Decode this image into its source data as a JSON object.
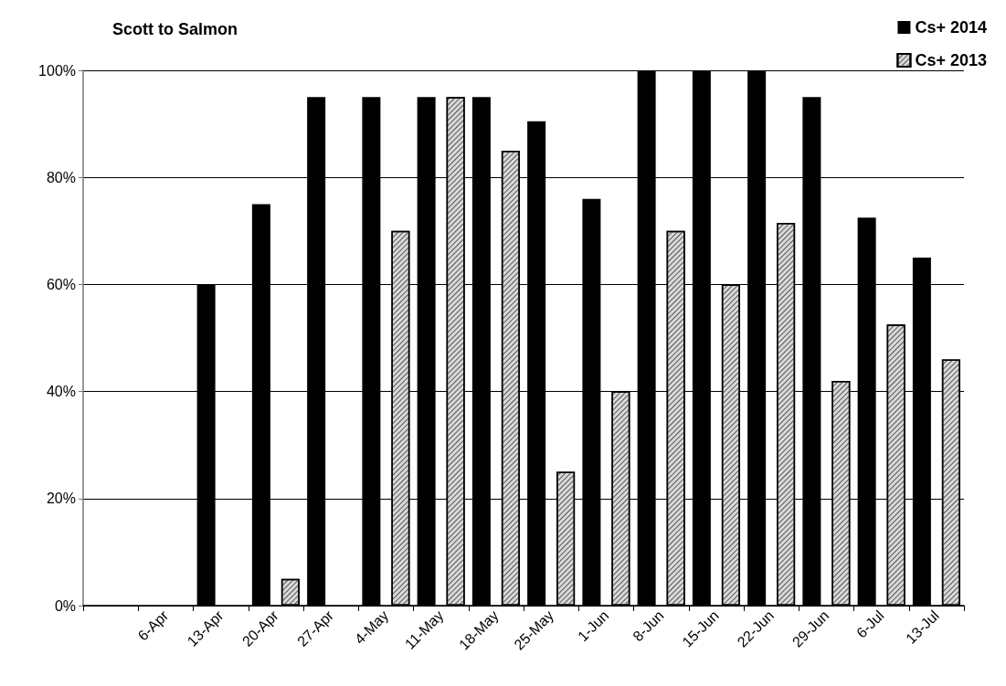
{
  "chart_data": {
    "type": "bar",
    "title": "Scott to Salmon",
    "categories": [
      null,
      "6-Apr",
      "13-Apr",
      "20-Apr",
      "27-Apr",
      "4-May",
      "11-May",
      "18-May",
      "25-May",
      "1-Jun",
      "8-Jun",
      "15-Jun",
      "22-Jun",
      "29-Jun",
      "6-Jul",
      "13-Jul"
    ],
    "series": [
      {
        "name": "Cs+ 2014",
        "color": "#000000",
        "values": [
          null,
          null,
          60,
          75,
          95,
          95,
          95,
          95,
          90.5,
          76,
          100,
          100,
          100,
          95,
          72.5,
          65
        ]
      },
      {
        "name": "Cs+ 2013",
        "color": "#d9d9d9",
        "values": [
          null,
          null,
          null,
          5,
          null,
          70,
          95,
          85,
          25,
          40,
          70,
          60,
          71.5,
          42,
          52.5,
          46
        ]
      }
    ],
    "ylim": [
      0,
      100
    ],
    "yticks": [
      {
        "value": 0,
        "label": "0%"
      },
      {
        "value": 20,
        "label": "20%"
      },
      {
        "value": 40,
        "label": "40%"
      },
      {
        "value": 60,
        "label": "60%"
      },
      {
        "value": 80,
        "label": "80%"
      },
      {
        "value": 100,
        "label": "100%"
      }
    ],
    "grid": "y",
    "legend": "top right"
  }
}
